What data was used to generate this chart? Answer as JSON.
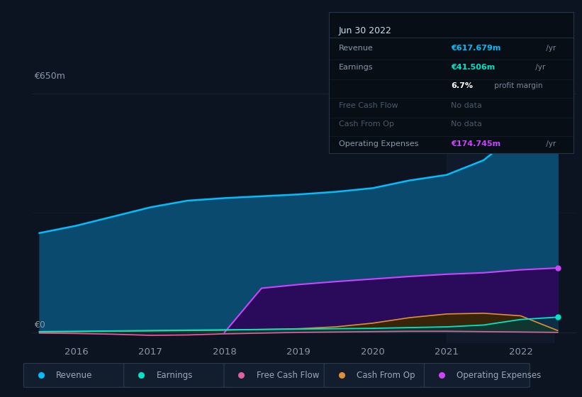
{
  "bg_color": "#0d1421",
  "chart_bg": "#0d1421",
  "grid_color": "#1e2a38",
  "text_color": "#8899aa",
  "years": [
    2015.5,
    2016.0,
    2016.5,
    2017.0,
    2017.5,
    2018.0,
    2018.5,
    2019.0,
    2019.5,
    2020.0,
    2020.5,
    2021.0,
    2021.5,
    2022.0,
    2022.5
  ],
  "revenue": [
    270,
    290,
    315,
    340,
    358,
    365,
    370,
    375,
    382,
    392,
    413,
    428,
    468,
    548,
    617
  ],
  "earnings": [
    2,
    3,
    4,
    5,
    6,
    7,
    8,
    9,
    10,
    11,
    13,
    15,
    20,
    35,
    41.5
  ],
  "free_cash_flow": [
    -2,
    -3,
    -5,
    -8,
    -7,
    -4,
    -2,
    0,
    1,
    2,
    3,
    3,
    2,
    1,
    0
  ],
  "cash_from_op": [
    1,
    2,
    3,
    4,
    5,
    6,
    8,
    10,
    15,
    25,
    40,
    50,
    52,
    45,
    5
  ],
  "operating_expenses": [
    0,
    0,
    0,
    0,
    0,
    0,
    120,
    130,
    138,
    145,
    152,
    158,
    162,
    170,
    175
  ],
  "revenue_color": "#00bfff",
  "revenue_fill": "#0a4a6e",
  "earnings_color": "#00e5c8",
  "earnings_fill": "#004040",
  "fcf_color": "#e060a0",
  "fcf_fill": "#3a1030",
  "cashop_color": "#e09030",
  "cashop_fill": "#3a2800",
  "opex_color": "#cc44ff",
  "opex_fill": "#2a0a5a",
  "ylabel_top": "€650m",
  "ylabel_zero": "€0",
  "x_ticks": [
    2016,
    2017,
    2018,
    2019,
    2020,
    2021,
    2022
  ],
  "highlight_xmin": 2021.0,
  "highlight_xmax": 2022.45,
  "ylim": [
    -30,
    720
  ],
  "xlim": [
    2015.4,
    2022.75
  ],
  "tooltip": {
    "date": "Jun 30 2022",
    "rows": [
      {
        "label": "Revenue",
        "value": "€617.679m",
        "unit": " /yr",
        "label_color": "#8899aa",
        "value_color": "#00bfff",
        "dimmed": false
      },
      {
        "label": "Earnings",
        "value": "€41.506m",
        "unit": " /yr",
        "label_color": "#8899aa",
        "value_color": "#00e5c8",
        "dimmed": false
      },
      {
        "label": "",
        "value": "6.7%",
        "unit": " profit margin",
        "label_color": "",
        "value_color": "#ffffff",
        "dimmed": false
      },
      {
        "label": "Free Cash Flow",
        "value": "No data",
        "unit": "",
        "label_color": "#4a5a6a",
        "value_color": "#4a5a6a",
        "dimmed": true
      },
      {
        "label": "Cash From Op",
        "value": "No data",
        "unit": "",
        "label_color": "#4a5a6a",
        "value_color": "#4a5a6a",
        "dimmed": true
      },
      {
        "label": "Operating Expenses",
        "value": "€174.745m",
        "unit": " /yr",
        "label_color": "#8899aa",
        "value_color": "#cc44ff",
        "dimmed": false
      }
    ]
  },
  "legend_items": [
    {
      "label": "Revenue",
      "color": "#00bfff"
    },
    {
      "label": "Earnings",
      "color": "#00e5c8"
    },
    {
      "label": "Free Cash Flow",
      "color": "#e060a0"
    },
    {
      "label": "Cash From Op",
      "color": "#e09030"
    },
    {
      "label": "Operating Expenses",
      "color": "#cc44ff"
    }
  ]
}
